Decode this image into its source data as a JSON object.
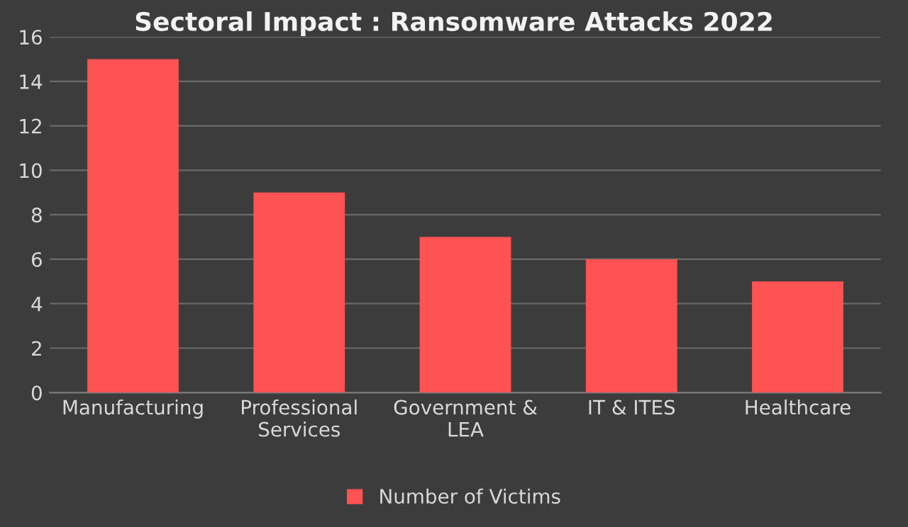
{
  "chart_data": {
    "type": "bar",
    "title": "Sectoral Impact : Ransomware Attacks 2022",
    "categories": [
      "Manufacturing",
      "Professional\nServices",
      "Government &\nLEA",
      "IT & ITES",
      "Healthcare"
    ],
    "series": [
      {
        "name": "Number of Victims",
        "color": "#ff5252",
        "values": [
          15,
          9,
          7,
          6,
          5
        ]
      }
    ],
    "ylim": [
      0,
      16
    ],
    "yticks": [
      0,
      2,
      4,
      6,
      8,
      10,
      12,
      14,
      16
    ],
    "grid": "y",
    "legend": "bottom"
  }
}
